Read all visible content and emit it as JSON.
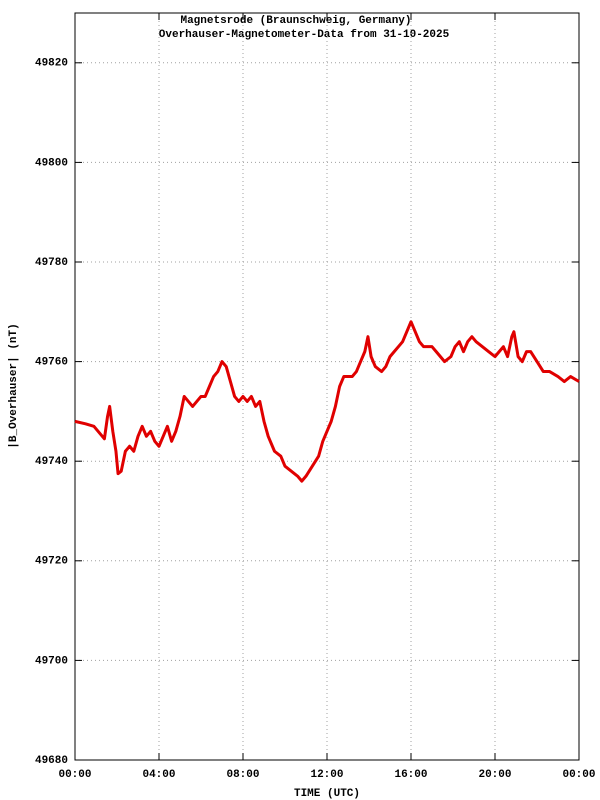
{
  "chart_data": {
    "type": "line",
    "title": "Magnetsrode (Braunschweig, Germany)",
    "subtitle": "Overhauser-Magnetometer-Data from 31-10-2025",
    "x_label": "TIME (UTC)",
    "y_label": "|B_Overhauser| (nT)",
    "xlim": [
      0,
      24
    ],
    "xticks": [
      {
        "value": 0,
        "label": "00:00"
      },
      {
        "value": 4,
        "label": "04:00"
      },
      {
        "value": 8,
        "label": "08:00"
      },
      {
        "value": 12,
        "label": "12:00"
      },
      {
        "value": 16,
        "label": "16:00"
      },
      {
        "value": 20,
        "label": "20:00"
      },
      {
        "value": 24,
        "label": "00:00"
      }
    ],
    "ylim": [
      49680,
      49830
    ],
    "yticks": [
      49680,
      49700,
      49720,
      49740,
      49760,
      49780,
      49800,
      49820
    ],
    "grid": true,
    "x": [
      0,
      0.5,
      0.9,
      1.2,
      1.4,
      1.55,
      1.65,
      1.8,
      1.95,
      2.05,
      2.2,
      2.4,
      2.6,
      2.8,
      3.0,
      3.2,
      3.4,
      3.6,
      3.8,
      4.0,
      4.2,
      4.4,
      4.6,
      4.8,
      5.0,
      5.2,
      5.4,
      5.6,
      5.8,
      6.0,
      6.2,
      6.4,
      6.6,
      6.8,
      7.0,
      7.2,
      7.4,
      7.6,
      7.8,
      8.0,
      8.2,
      8.4,
      8.6,
      8.8,
      9.0,
      9.2,
      9.5,
      9.8,
      10.0,
      10.3,
      10.6,
      10.8,
      11.0,
      11.3,
      11.6,
      11.8,
      12.0,
      12.2,
      12.4,
      12.6,
      12.8,
      13.0,
      13.2,
      13.4,
      13.6,
      13.8,
      13.95,
      14.1,
      14.3,
      14.6,
      14.8,
      15.0,
      15.2,
      15.4,
      15.6,
      15.8,
      16.0,
      16.2,
      16.4,
      16.6,
      16.8,
      17.0,
      17.2,
      17.4,
      17.6,
      17.9,
      18.1,
      18.3,
      18.5,
      18.7,
      18.9,
      19.1,
      19.4,
      19.7,
      20.0,
      20.2,
      20.4,
      20.6,
      20.8,
      20.9,
      21.1,
      21.3,
      21.5,
      21.7,
      22.0,
      22.3,
      22.6,
      23.0,
      23.3,
      23.6,
      24.0
    ],
    "series": [
      {
        "name": "|B_Overhauser|",
        "color": "#e00000",
        "values": [
          49748,
          49747.5,
          49747,
          49745.5,
          49744.5,
          49749,
          49751,
          49746,
          49742,
          49737.5,
          49738,
          49742,
          49743,
          49742,
          49745,
          49747,
          49745,
          49746,
          49744,
          49743,
          49745,
          49747,
          49744,
          49746,
          49749,
          49753,
          49752,
          49751,
          49752,
          49753,
          49753,
          49755,
          49757,
          49758,
          49760,
          49759,
          49756,
          49753,
          49752,
          49753,
          49752,
          49753,
          49751,
          49752,
          49748,
          49745,
          49742,
          49741,
          49739,
          49738,
          49737,
          49736,
          49737,
          49739,
          49741,
          49744,
          49746,
          49748,
          49751,
          49755,
          49757,
          49757,
          49757,
          49758,
          49760,
          49762,
          49765,
          49761,
          49759,
          49758,
          49759,
          49761,
          49762,
          49763,
          49764,
          49766,
          49768,
          49766,
          49764,
          49763,
          49763,
          49763,
          49762,
          49761,
          49760,
          49761,
          49763,
          49764,
          49762,
          49764,
          49765,
          49764,
          49763,
          49762,
          49761,
          49762,
          49763,
          49761,
          49765,
          49766,
          49761,
          49760,
          49762,
          49762,
          49760,
          49758,
          49758,
          49757,
          49756,
          49757,
          49756
        ]
      }
    ]
  }
}
